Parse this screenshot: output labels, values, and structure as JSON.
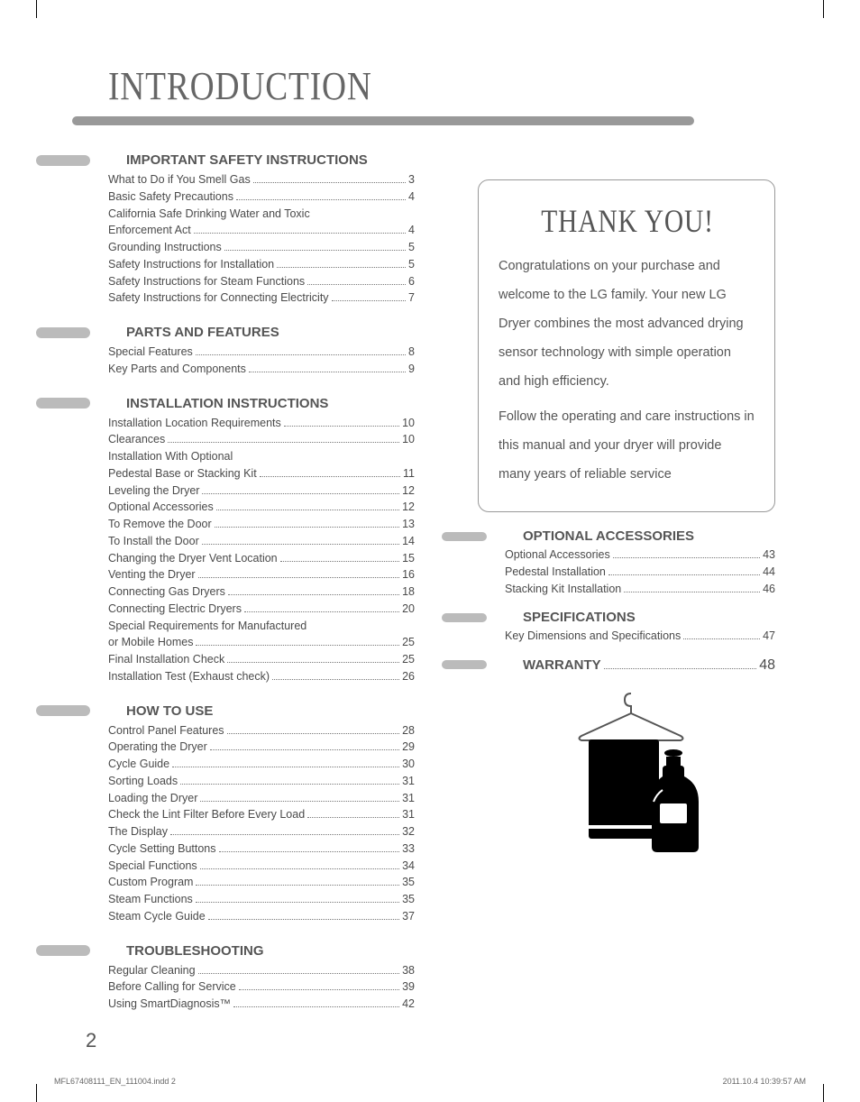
{
  "page_title": "INTRODUCTION",
  "page_number": "2",
  "footer_file": "MFL67408111_EN_111004.indd   2",
  "footer_timestamp": "2011.10.4   10:39:57 AM",
  "colors": {
    "text": "#4a4a4a",
    "title": "#666666",
    "bar": "#999999",
    "bullet": "#bbbbbb",
    "border": "#999999"
  },
  "thank_you": {
    "title": "THANK YOU!",
    "body": "Congratulations on your purchase and welcome to the LG family. Your new LG Dryer combines the most advanced drying sensor technology with simple operation and high efficiency.\nFollow the operating and care instructions in this manual and your dryer will provide many years of reliable service"
  },
  "left_sections": [
    {
      "title": "IMPORTANT SAFETY INSTRUCTIONS",
      "items": [
        {
          "label": "What to Do if You Smell Gas",
          "page": "3"
        },
        {
          "label": "Basic Safety Precautions",
          "page": "4"
        },
        {
          "label": "California Safe Drinking Water and Toxic",
          "wrap": true
        },
        {
          "label": "Enforcement Act",
          "page": "4"
        },
        {
          "label": "Grounding Instructions",
          "page": "5"
        },
        {
          "label": "Safety Instructions for Installation",
          "page": "5"
        },
        {
          "label": "Safety Instructions for Steam Functions",
          "page": "6"
        },
        {
          "label": "Safety Instructions for Connecting Electricity",
          "page": "7"
        }
      ]
    },
    {
      "title": "PARTS AND FEATURES",
      "items": [
        {
          "label": "Special Features",
          "page": "8"
        },
        {
          "label": "Key Parts and Components",
          "page": "9"
        }
      ]
    },
    {
      "title": "INSTALLATION INSTRUCTIONS",
      "items": [
        {
          "label": "Installation Location Requirements",
          "page": "10"
        },
        {
          "label": "Clearances",
          "page": "10"
        },
        {
          "label": "Installation With Optional",
          "wrap": true
        },
        {
          "label": "Pedestal Base or Stacking Kit",
          "page": "11"
        },
        {
          "label": "Leveling the Dryer",
          "page": "12"
        },
        {
          "label": "Optional Accessories",
          "page": "12"
        },
        {
          "label": "To Remove the Door",
          "page": "13"
        },
        {
          "label": "To Install the Door",
          "page": "14"
        },
        {
          "label": "Changing the Dryer Vent Location",
          "page": "15"
        },
        {
          "label": "Venting the Dryer",
          "page": "16"
        },
        {
          "label": "Connecting Gas Dryers",
          "page": "18"
        },
        {
          "label": "Connecting Electric Dryers",
          "page": "20"
        },
        {
          "label": "Special Requirements for Manufactured",
          "wrap": true
        },
        {
          "label": "or Mobile Homes",
          "page": "25"
        },
        {
          "label": "Final Installation Check",
          "page": "25"
        },
        {
          "label": "Installation Test (Exhaust check)",
          "page": "26"
        }
      ]
    },
    {
      "title": "HOW TO USE",
      "items": [
        {
          "label": "Control Panel Features",
          "page": "28"
        },
        {
          "label": "Operating the Dryer",
          "page": "29"
        },
        {
          "label": "Cycle Guide",
          "page": "30"
        },
        {
          "label": "Sorting Loads",
          "page": "31"
        },
        {
          "label": "Loading the Dryer",
          "page": "31"
        },
        {
          "label": "Check the Lint Filter Before Every Load",
          "page": "31"
        },
        {
          "label": "The Display",
          "page": "32"
        },
        {
          "label": "Cycle Setting Buttons",
          "page": "33"
        },
        {
          "label": "Special Functions",
          "page": "34"
        },
        {
          "label": "Custom Program",
          "page": "35"
        },
        {
          "label": "Steam Functions",
          "page": "35"
        },
        {
          "label": "Steam Cycle Guide",
          "page": "37"
        }
      ]
    },
    {
      "title": "TROUBLESHOOTING",
      "items": [
        {
          "label": "Regular Cleaning",
          "page": "38"
        },
        {
          "label": "Before Calling for Service",
          "page": "39"
        },
        {
          "label": "Using SmartDiagnosis™",
          "page": "42"
        }
      ]
    }
  ],
  "right_sections": [
    {
      "title": "OPTIONAL ACCESSORIES",
      "items": [
        {
          "label": "Optional Accessories",
          "page": "43"
        },
        {
          "label": "Pedestal Installation",
          "page": "44"
        },
        {
          "label": "Stacking Kit Installation",
          "page": "46"
        }
      ]
    },
    {
      "title": "SPECIFICATIONS",
      "items": [
        {
          "label": "Key Dimensions and Specifications",
          "page": "47"
        }
      ]
    },
    {
      "title": "WARRANTY",
      "inline": true,
      "page": "48"
    }
  ]
}
